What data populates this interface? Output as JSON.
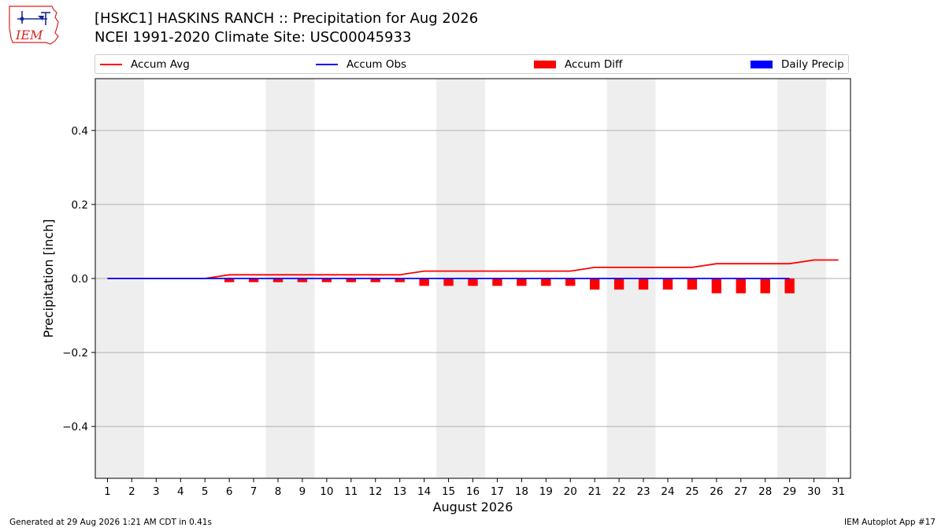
{
  "logo": {
    "text": "IEM"
  },
  "header": {
    "title_line1": "[HSKC1] HASKINS RANCH :: Precipitation for Aug 2026",
    "title_line2": "NCEI 1991-2020 Climate Site: USC00045933"
  },
  "legend": {
    "placement": "top",
    "entries": [
      {
        "label": "Accum Avg",
        "kind": "line",
        "color": "#ff0000"
      },
      {
        "label": "Accum Obs",
        "kind": "line",
        "color": "#0000ff"
      },
      {
        "label": "Accum Diff",
        "kind": "bar",
        "color": "#ff0000"
      },
      {
        "label": "Daily Precip",
        "kind": "bar",
        "color": "#0000ff"
      }
    ]
  },
  "chart_data": {
    "type": "line",
    "xlabel": "August 2026",
    "ylabel": "Precipitation [inch]",
    "xlim": [
      0.5,
      31.5
    ],
    "ylim": [
      -0.54,
      0.54
    ],
    "yticks": [
      -0.4,
      -0.2,
      0.0,
      0.2,
      0.4
    ],
    "ytick_labels": [
      "−0.4",
      "−0.2",
      "0.0",
      "0.2",
      "0.4"
    ],
    "xticks": [
      1,
      2,
      3,
      4,
      5,
      6,
      7,
      8,
      9,
      10,
      11,
      12,
      13,
      14,
      15,
      16,
      17,
      18,
      19,
      20,
      21,
      22,
      23,
      24,
      25,
      26,
      27,
      28,
      29,
      30,
      31
    ],
    "grid": "horizontal",
    "weekend_shading_days": [
      [
        1,
        2
      ],
      [
        8,
        9
      ],
      [
        15,
        16
      ],
      [
        22,
        23
      ],
      [
        29,
        30
      ]
    ],
    "weekend_shading_color": "#eeeeee",
    "series": [
      {
        "name": "Accum Avg",
        "kind": "line",
        "color": "#ff0000",
        "x": [
          1,
          2,
          3,
          4,
          5,
          6,
          7,
          8,
          9,
          10,
          11,
          12,
          13,
          14,
          15,
          16,
          17,
          18,
          19,
          20,
          21,
          22,
          23,
          24,
          25,
          26,
          27,
          28,
          29,
          30,
          31
        ],
        "values": [
          0,
          0,
          0,
          0,
          0,
          0.01,
          0.01,
          0.01,
          0.01,
          0.01,
          0.01,
          0.01,
          0.01,
          0.02,
          0.02,
          0.02,
          0.02,
          0.02,
          0.02,
          0.02,
          0.03,
          0.03,
          0.03,
          0.03,
          0.03,
          0.04,
          0.04,
          0.04,
          0.04,
          0.05,
          0.05
        ]
      },
      {
        "name": "Accum Obs",
        "kind": "line",
        "color": "#0000ff",
        "x": [
          1,
          2,
          3,
          4,
          5,
          6,
          7,
          8,
          9,
          10,
          11,
          12,
          13,
          14,
          15,
          16,
          17,
          18,
          19,
          20,
          21,
          22,
          23,
          24,
          25,
          26,
          27,
          28,
          29
        ],
        "values": [
          0,
          0,
          0,
          0,
          0,
          0,
          0,
          0,
          0,
          0,
          0,
          0,
          0,
          0,
          0,
          0,
          0,
          0,
          0,
          0,
          0,
          0,
          0,
          0,
          0,
          0,
          0,
          0,
          0
        ]
      },
      {
        "name": "Accum Diff",
        "kind": "bar",
        "color": "#ff0000",
        "x": [
          1,
          2,
          3,
          4,
          5,
          6,
          7,
          8,
          9,
          10,
          11,
          12,
          13,
          14,
          15,
          16,
          17,
          18,
          19,
          20,
          21,
          22,
          23,
          24,
          25,
          26,
          27,
          28,
          29
        ],
        "values": [
          0,
          0,
          0,
          0,
          0,
          -0.01,
          -0.01,
          -0.01,
          -0.01,
          -0.01,
          -0.01,
          -0.01,
          -0.01,
          -0.02,
          -0.02,
          -0.02,
          -0.02,
          -0.02,
          -0.02,
          -0.02,
          -0.03,
          -0.03,
          -0.03,
          -0.03,
          -0.03,
          -0.04,
          -0.04,
          -0.04,
          -0.04
        ]
      },
      {
        "name": "Daily Precip",
        "kind": "bar",
        "color": "#0000ff",
        "x": [
          1,
          2,
          3,
          4,
          5,
          6,
          7,
          8,
          9,
          10,
          11,
          12,
          13,
          14,
          15,
          16,
          17,
          18,
          19,
          20,
          21,
          22,
          23,
          24,
          25,
          26,
          27,
          28,
          29
        ],
        "values": [
          0,
          0,
          0,
          0,
          0,
          0,
          0,
          0,
          0,
          0,
          0,
          0,
          0,
          0,
          0,
          0,
          0,
          0,
          0,
          0,
          0,
          0,
          0,
          0,
          0,
          0,
          0,
          0,
          0
        ]
      }
    ]
  },
  "footer": {
    "generated": "Generated at 29 Aug 2026 1:21 AM CDT in 0.41s",
    "app": "IEM Autoplot App #17"
  }
}
